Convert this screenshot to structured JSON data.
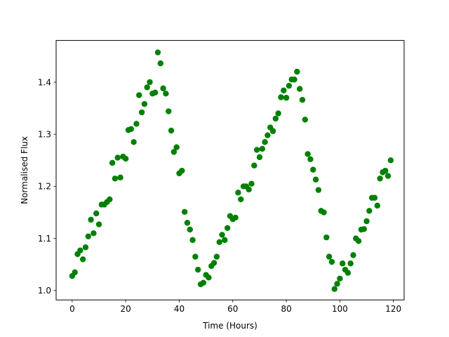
{
  "chart_data": {
    "type": "scatter",
    "title": "",
    "xlabel": "Time (Hours)",
    "ylabel": "Normalised Flux",
    "xlim": [
      -6,
      124
    ],
    "ylim": [
      0.982,
      1.48
    ],
    "xticks": [
      0,
      20,
      40,
      60,
      80,
      100,
      120
    ],
    "yticks": [
      1.0,
      1.1,
      1.2,
      1.3,
      1.4
    ],
    "ytick_labels": [
      "1.0",
      "1.1",
      "1.2",
      "1.3",
      "1.4"
    ],
    "grid": false,
    "marker_color": "#008000",
    "series": [
      {
        "x": [
          0,
          1,
          2,
          3,
          4,
          5,
          6,
          7,
          8,
          9,
          10,
          11,
          12,
          13,
          14,
          15,
          16,
          17,
          18,
          19,
          20,
          21,
          22,
          23,
          24,
          25,
          26,
          27,
          28,
          29,
          30,
          31,
          32,
          33,
          34,
          35,
          36,
          37,
          38,
          39,
          40,
          41,
          42,
          43,
          44,
          45,
          46,
          47,
          48,
          49,
          50,
          51,
          52,
          53,
          54,
          55,
          56,
          57,
          58,
          59,
          60,
          61,
          62,
          63,
          64,
          65,
          66,
          67,
          68,
          69,
          70,
          71,
          72,
          73,
          74,
          75,
          76,
          77,
          78,
          79,
          80,
          81,
          82,
          83,
          84,
          85,
          86,
          87,
          88,
          89,
          90,
          91,
          92,
          93,
          94,
          95,
          96,
          97,
          98,
          99,
          100,
          101,
          102,
          103,
          104,
          105,
          106,
          107,
          108,
          109,
          110,
          111,
          112,
          113,
          114,
          115,
          116,
          117,
          118,
          119
        ],
        "y": [
          1.028,
          1.035,
          1.07,
          1.077,
          1.06,
          1.083,
          1.104,
          1.136,
          1.11,
          1.148,
          1.127,
          1.165,
          1.165,
          1.17,
          1.175,
          1.245,
          1.215,
          1.255,
          1.217,
          1.257,
          1.253,
          1.308,
          1.31,
          1.285,
          1.32,
          1.375,
          1.342,
          1.358,
          1.39,
          1.4,
          1.378,
          1.38,
          1.457,
          1.436,
          1.388,
          1.378,
          1.344,
          1.307,
          1.266,
          1.275,
          1.225,
          1.23,
          1.151,
          1.13,
          1.117,
          1.097,
          1.065,
          1.04,
          1.012,
          1.015,
          1.03,
          1.025,
          1.047,
          1.053,
          1.065,
          1.093,
          1.107,
          1.097,
          1.12,
          1.143,
          1.137,
          1.14,
          1.188,
          1.175,
          1.2,
          1.2,
          1.194,
          1.205,
          1.24,
          1.27,
          1.256,
          1.272,
          1.285,
          1.298,
          1.313,
          1.306,
          1.33,
          1.34,
          1.371,
          1.384,
          1.37,
          1.393,
          1.405,
          1.405,
          1.42,
          1.387,
          1.366,
          1.328,
          1.262,
          1.252,
          1.232,
          1.213,
          1.193,
          1.153,
          1.15,
          1.102,
          1.065,
          1.055,
          1.003,
          1.013,
          1.023,
          1.052,
          1.04,
          1.034,
          1.052,
          1.068,
          1.1,
          1.095,
          1.117,
          1.118,
          1.133,
          1.153,
          1.178,
          1.178,
          1.163,
          1.215,
          1.227,
          1.23,
          1.22,
          1.25
        ]
      }
    ]
  }
}
